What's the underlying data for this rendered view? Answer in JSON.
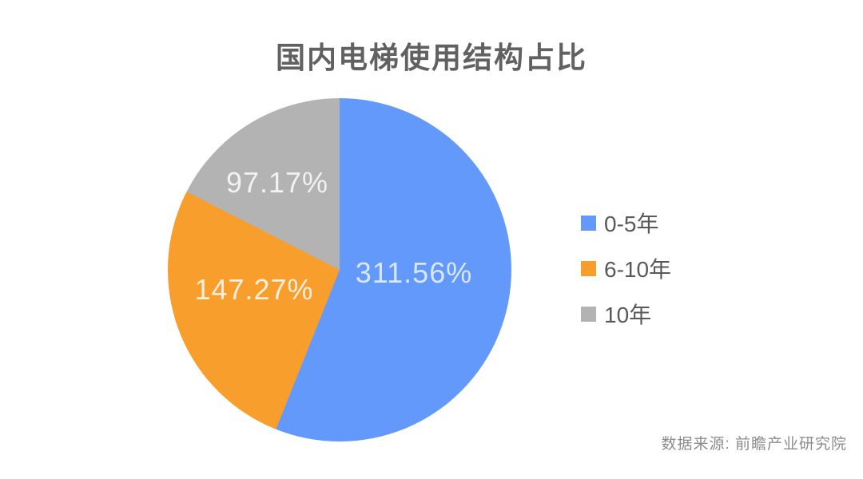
{
  "title": "国内电梯使用结构占比",
  "source": "数据来源: 前瞻产业研究院",
  "chart_data": {
    "type": "pie",
    "title": "国内电梯使用结构占比",
    "source": "数据来源: 前瞻产业研究院",
    "start_angle_deg": 0,
    "direction": "clockwise",
    "legend_position": "right",
    "slices": [
      {
        "name": "0-5年",
        "value": 311.56,
        "value_label": "311.56%",
        "color": "#6299fa"
      },
      {
        "name": "6-10年",
        "value": 147.27,
        "value_label": "147.27%",
        "color": "#f89e2c"
      },
      {
        "name": "10年",
        "value": 97.17,
        "value_label": "97.17%",
        "color": "#b3b3b3"
      }
    ]
  }
}
